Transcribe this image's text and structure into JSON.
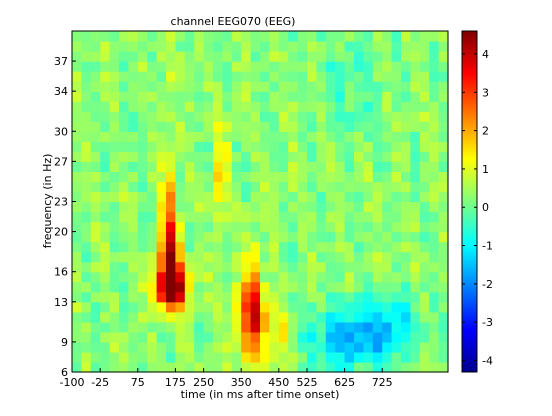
{
  "chart_data": {
    "type": "heatmap",
    "title": "channel EEG070 (EEG)",
    "xlabel": "time (in ms after time onset)",
    "ylabel": "frequency (in Hz)",
    "xlim": [
      -100,
      900
    ],
    "ylim": [
      6,
      40
    ],
    "x_ticks": [
      -100,
      -25,
      75,
      175,
      250,
      350,
      450,
      525,
      625,
      725
    ],
    "x_tick_labels": [
      "-100",
      "-25",
      "75",
      "175",
      "250",
      "350",
      "450",
      "525",
      "625",
      "725"
    ],
    "y_ticks": [
      6,
      9,
      13,
      16,
      20,
      23,
      27,
      30,
      34,
      37
    ],
    "y_tick_labels": [
      "6",
      "9",
      "13",
      "16",
      "20",
      "23",
      "27",
      "30",
      "34",
      "37"
    ],
    "colorbar": {
      "colormap": "jet",
      "range": [
        -4.3,
        4.6
      ],
      "ticks": [
        -4,
        -3,
        -2,
        -1,
        0,
        1,
        2,
        3,
        4
      ],
      "tick_labels": [
        "-4",
        "-3",
        "-2",
        "-1",
        "0",
        "1",
        "2",
        "3",
        "4"
      ]
    },
    "value_range": [
      -4.3,
      4.6
    ],
    "n_time_bins": 40,
    "n_freq_bins": 34,
    "blobs": [
      {
        "t": 165,
        "f": 14.5,
        "sigma_t": 30,
        "sigma_f": 1.3,
        "amp": 4.5
      },
      {
        "t": 160,
        "f": 17.5,
        "sigma_t": 22,
        "sigma_f": 2.6,
        "amp": 3.0
      },
      {
        "t": 160,
        "f": 22,
        "sigma_t": 12,
        "sigma_f": 4.5,
        "amp": 1.6
      },
      {
        "t": 150,
        "f": 31,
        "sigma_t": 7,
        "sigma_f": 8,
        "amp": 1.2
      },
      {
        "t": 380,
        "f": 11,
        "sigma_t": 32,
        "sigma_f": 2.6,
        "amp": 2.6
      },
      {
        "t": 380,
        "f": 15,
        "sigma_t": 14,
        "sigma_f": 3.5,
        "amp": 1.6
      },
      {
        "t": 295,
        "f": 26,
        "sigma_t": 14,
        "sigma_f": 3.5,
        "amp": 1.3
      },
      {
        "t": 460,
        "f": 9,
        "sigma_t": 20,
        "sigma_f": 2,
        "amp": 1.0
      },
      {
        "t": 640,
        "f": 9.5,
        "sigma_t": 80,
        "sigma_f": 2.2,
        "amp": -1.9
      },
      {
        "t": 760,
        "f": 11,
        "sigma_t": 60,
        "sigma_f": 2,
        "amp": -1.0
      },
      {
        "t": 640,
        "f": 35,
        "sigma_t": 50,
        "sigma_f": 4,
        "amp": -0.6
      }
    ]
  }
}
